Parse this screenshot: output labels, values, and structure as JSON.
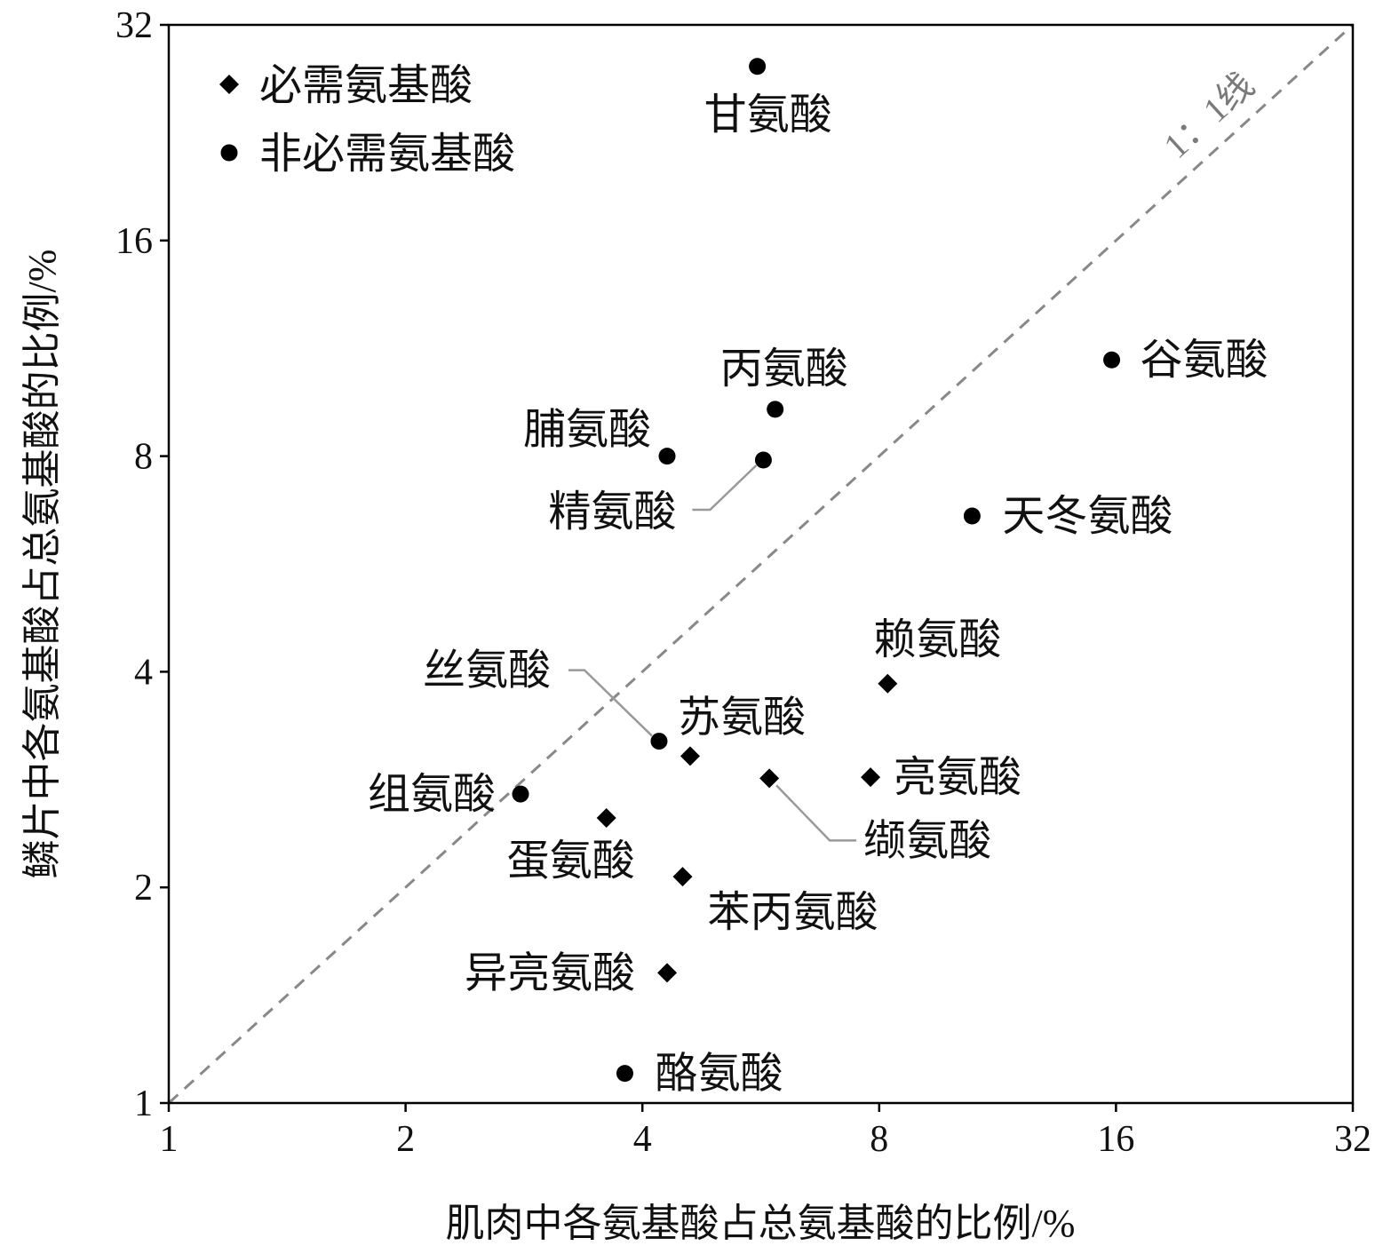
{
  "chart_data": {
    "type": "scatter",
    "xlabel": "肌肉中各氨基酸占总氨基酸的比例/%",
    "ylabel": "鳞片中各氨基酸占总氨基酸的比例/%",
    "x_scale": "log2",
    "y_scale": "log2",
    "xlim": [
      1,
      32
    ],
    "ylim": [
      1,
      32
    ],
    "xticks": [
      "1",
      "2",
      "4",
      "8",
      "16",
      "32"
    ],
    "yticks": [
      "1",
      "2",
      "4",
      "8",
      "16",
      "32"
    ],
    "reference_line": {
      "label": "1：1线",
      "color": "#888888",
      "style": "dashed"
    },
    "legend_position": "top-left",
    "series": [
      {
        "name": "必需氨基酸",
        "marker": "diamond",
        "points": [
          {
            "label": "赖氨酸",
            "x": 8.2,
            "y": 3.85
          },
          {
            "label": "苏氨酸",
            "x": 4.6,
            "y": 3.05
          },
          {
            "label": "亮氨酸",
            "x": 7.8,
            "y": 2.85
          },
          {
            "label": "缬氨酸",
            "x": 5.8,
            "y": 2.84
          },
          {
            "label": "蛋氨酸",
            "x": 3.6,
            "y": 2.5
          },
          {
            "label": "苯丙氨酸",
            "x": 4.5,
            "y": 2.07
          },
          {
            "label": "异亮氨酸",
            "x": 4.3,
            "y": 1.52
          }
        ]
      },
      {
        "name": "非必需氨基酸",
        "marker": "circle",
        "points": [
          {
            "label": "甘氨酸",
            "x": 5.6,
            "y": 28.0
          },
          {
            "label": "谷氨酸",
            "x": 15.8,
            "y": 10.9
          },
          {
            "label": "丙氨酸",
            "x": 5.9,
            "y": 9.3
          },
          {
            "label": "脯氨酸",
            "x": 4.3,
            "y": 8.0
          },
          {
            "label": "精氨酸",
            "x": 5.7,
            "y": 7.9
          },
          {
            "label": "天冬氨酸",
            "x": 10.5,
            "y": 6.6
          },
          {
            "label": "丝氨酸",
            "x": 4.2,
            "y": 3.2
          },
          {
            "label": "组氨酸",
            "x": 2.8,
            "y": 2.7
          },
          {
            "label": "酪氨酸",
            "x": 3.8,
            "y": 1.1
          }
        ]
      }
    ]
  }
}
